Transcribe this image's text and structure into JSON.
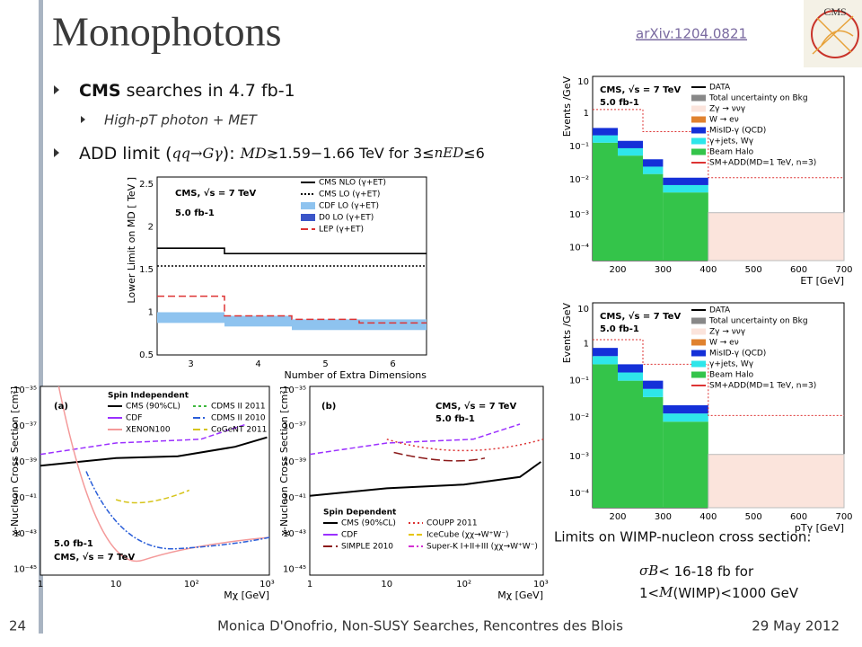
{
  "header": {
    "title": "Monophotons",
    "link": "arXiv:1204.0821"
  },
  "bullets": {
    "b1": [
      "CMS",
      " searches in 4.7 fb-1"
    ],
    "b2": [
      "High-pT photon + MET"
    ],
    "b3": [
      "ADD limit (",
      "qq→Gγ",
      "): ",
      "MD",
      "≳1.59−1.66 TeV for 3≤",
      "nED",
      "≤6"
    ]
  },
  "plots": {
    "md": {
      "ylabel": "Lower Limit on MD [ TeV ]",
      "xlabel": "Number of Extra Dimensions",
      "yticks": [
        "0.5",
        "1",
        "1.5",
        "2",
        "2.5"
      ],
      "xticks": [
        "3",
        "4",
        "5",
        "6"
      ],
      "texts": [
        "CMS, √s = 7 TeV",
        "5.0 fb-1"
      ],
      "legend": [
        "CMS NLO (γ+ET)",
        "CMS LO (γ+ET)",
        "CDF LO (γ+ET)",
        "D0 LO (γ+ET)",
        "LEP (γ+ET)"
      ]
    },
    "rt": {
      "ylabel": "Events /GeV",
      "xlabel": "ET [GeV]",
      "yticks": [
        "10⁻⁴",
        "10⁻³",
        "10⁻²",
        "10⁻¹",
        "1",
        "10"
      ],
      "xticks": [
        "200",
        "300",
        "400",
        "500",
        "600",
        "700"
      ],
      "texts": [
        "CMS, √s = 7 TeV",
        "5.0 fb-1"
      ],
      "legend": [
        "DATA",
        "Total uncertainty on Bkg",
        "Zγ → ννγ",
        "W → eν",
        "MisID-γ (QCD)",
        "γ+jets, Wγ",
        "Beam Halo",
        "SM+ADD(MD=1 TeV, n=3)"
      ]
    },
    "rb": {
      "ylabel": "Events /GeV",
      "xlabel": "pTγ [GeV]",
      "yticks": [
        "10⁻⁴",
        "10⁻³",
        "10⁻²",
        "10⁻¹",
        "1",
        "10"
      ],
      "xticks": [
        "200",
        "300",
        "400",
        "500",
        "600",
        "700"
      ],
      "texts": [
        "CMS, √s = 7 TeV",
        "5.0 fb-1"
      ],
      "legend": [
        "DATA",
        "Total uncertainty on Bkg",
        "Zγ → ννγ",
        "W → eν",
        "MisID-γ (QCD)",
        "γ+jets, Wγ",
        "Beam Halo",
        "SM+ADD(MD=1 TeV, n=3)"
      ]
    },
    "si": {
      "ylabel": "χ-Nucleon Cross Section [cm²]",
      "xlabel": "Mχ [GeV]",
      "yticks": [
        "10⁻⁴⁵",
        "10⁻⁴³",
        "10⁻⁴¹",
        "10⁻³⁹",
        "10⁻³⁷",
        "10⁻³⁵"
      ],
      "xticks": [
        "1",
        "10",
        "10²",
        "10³"
      ],
      "texts": [
        "(a)",
        "5.0 fb-1",
        "CMS, √s = 7 TeV"
      ],
      "legend_title": "Spin Independent",
      "legend": [
        "CMS (90%CL)",
        "CDF",
        "XENON100",
        "CDMS II 2011",
        "CDMS II 2010",
        "CoGeNT 2011"
      ]
    },
    "sd": {
      "ylabel": "χ-Nucleon Cross Section [cm²]",
      "xlabel": "Mχ [GeV]",
      "yticks": [
        "10⁻⁴⁵",
        "10⁻⁴³",
        "10⁻⁴¹",
        "10⁻³⁹",
        "10⁻³⁷",
        "10⁻³⁵"
      ],
      "xticks": [
        "1",
        "10",
        "10²",
        "10³"
      ],
      "texts": [
        "(b)",
        "CMS, √s = 7 TeV",
        "5.0 fb-1"
      ],
      "legend_title": "Spin Dependent",
      "legend": [
        "CMS (90%CL)",
        "CDF",
        "SIMPLE 2010",
        "COUPP 2011",
        "IceCube (χχ→W⁺W⁻)",
        "Super-K I+II+III (χχ→W⁺W⁻)"
      ]
    }
  },
  "caption": {
    "heading": "Limits on WIMP-nucleon cross section:",
    "line1": [
      "σB",
      "< 16-18 fb for"
    ],
    "line2": [
      "1<",
      "M",
      "(WIMP)<1000 GeV"
    ]
  },
  "footer": {
    "page": "24",
    "center": "Monica D'Onofrio, Non-SUSY Searches, Rencontres des Blois",
    "date": "29 May 2012"
  },
  "logo": "CMS"
}
